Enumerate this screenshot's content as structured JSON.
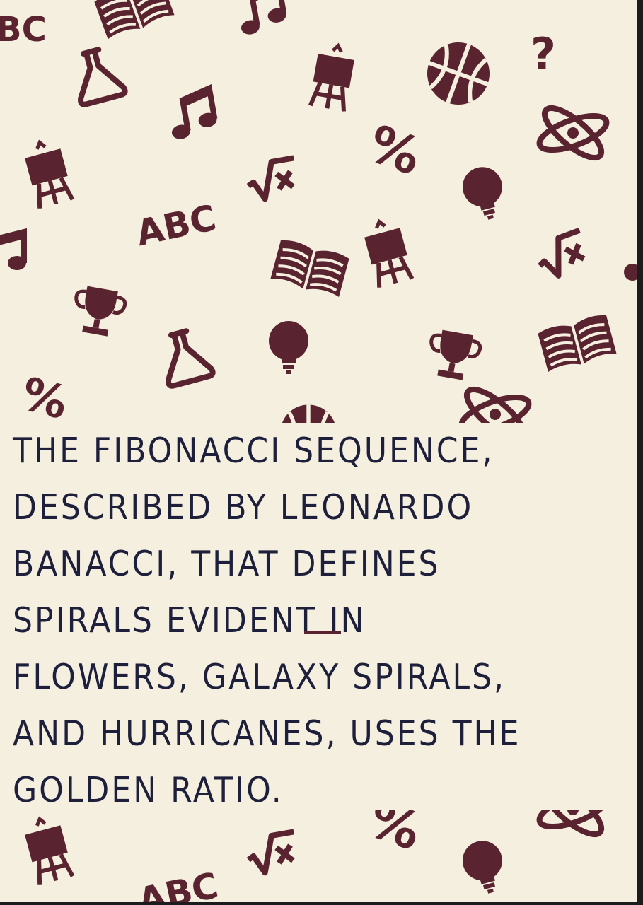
{
  "caption": {
    "text": "THE FIBONACCI SEQUENCE,\nDESCRIBED BY LEONARDO\nBANACCI, THAT DEFINES\nSPIRALS EVIDENT IN\nFLOWERS, GALAXY SPIRALS,\nAND HURRICANES, USES THE\nGOLDEN RATIO."
  },
  "colors": {
    "background": "#f5efe0",
    "icon": "#5a2330",
    "text": "#1d1f3b"
  },
  "pattern_icons": [
    "abc-text-icon",
    "flask-icon",
    "music-note-icon",
    "easel-icon",
    "percent-icon",
    "square-root-icon",
    "book-icon",
    "trophy-icon",
    "lightbulb-icon",
    "basketball-icon",
    "atom-icon",
    "question-mark-icon"
  ]
}
